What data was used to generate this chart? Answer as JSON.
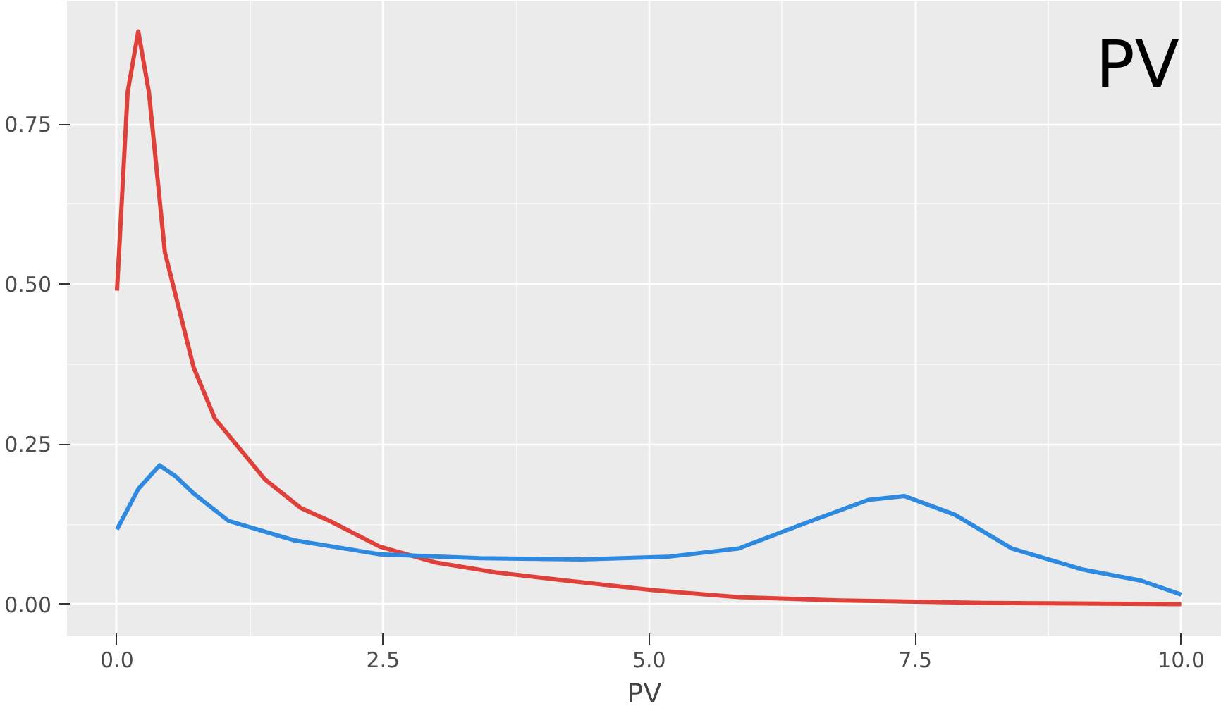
{
  "chart_data": {
    "type": "line",
    "xlabel": "PV",
    "annotations": [
      "PV"
    ],
    "xlim": [
      -0.47,
      10.38
    ],
    "ylim": [
      -0.05,
      0.943
    ],
    "xticks": [
      {
        "value": 0,
        "label": "0.0"
      },
      2.5,
      {
        "value": 5,
        "label": "5.0"
      },
      7.5,
      {
        "value": 10,
        "label": "10.0"
      }
    ],
    "yticks": [
      {
        "value": 0,
        "label": "0.00"
      },
      0.25,
      {
        "value": 0.5,
        "label": "0.50"
      },
      0.75
    ],
    "grid": true,
    "line_style": "solid",
    "marker": "none",
    "series": [
      {
        "color": "#e0403a",
        "x": [
          0,
          0.1,
          0.2,
          0.3,
          0.45,
          0.6,
          0.72,
          0.92,
          1.39,
          1.73,
          2.0,
          2.47,
          3.0,
          3.55,
          4.22,
          5.03,
          5.84,
          6.79,
          8.14,
          10
        ],
        "values": [
          0.49,
          0.8,
          0.895,
          0.8,
          0.55,
          0.45,
          0.37,
          0.29,
          0.195,
          0.15,
          0.13,
          0.09,
          0.065,
          0.05,
          0.037,
          0.022,
          0.011,
          0.006,
          0.002,
          0.0
        ]
      },
      {
        "color": "#2e8ae0",
        "x": [
          0,
          0.2,
          0.4,
          0.55,
          0.72,
          1.05,
          1.66,
          2.47,
          3.41,
          4.36,
          5.17,
          5.84,
          6.52,
          7.06,
          7.4,
          7.87,
          8.41,
          9.08,
          9.62,
          10
        ],
        "values": [
          0.117,
          0.18,
          0.217,
          0.2,
          0.173,
          0.13,
          0.1,
          0.078,
          0.072,
          0.07,
          0.074,
          0.087,
          0.13,
          0.163,
          0.169,
          0.14,
          0.087,
          0.054,
          0.037,
          0.015
        ]
      }
    ]
  }
}
